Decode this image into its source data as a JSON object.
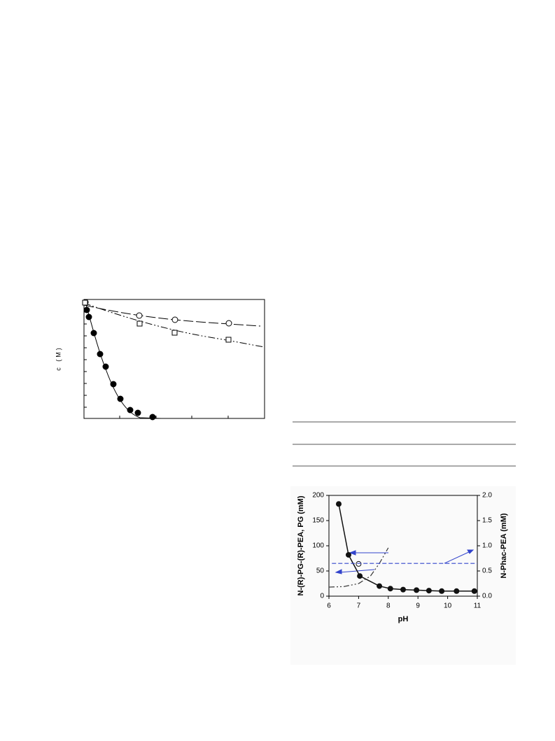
{
  "left_figure": {
    "y_label": "c (M)"
  },
  "chart_data": {
    "type": "line",
    "x_label": "pH",
    "y_label": "N-(R)-PG-(R)-PEA, PG (mM)",
    "y2_label": "N-Phac-PEA (mM)",
    "xlim": [
      6,
      11
    ],
    "xticks": [
      6,
      7,
      8,
      9,
      10,
      11
    ],
    "ylim": [
      0,
      200
    ],
    "yticks": [
      0,
      50,
      100,
      150,
      200
    ],
    "y2lim": [
      0,
      2
    ],
    "y2ticks": [
      {
        "value": 0,
        "label": "0.0"
      },
      {
        "value": 0.5,
        "label": "0.5"
      },
      {
        "value": 1,
        "label": "1.0"
      },
      {
        "value": 1.5,
        "label": "1.5"
      },
      {
        "value": 2,
        "label": "2.0"
      }
    ],
    "series": [
      {
        "color": "#111111",
        "line": "solid",
        "marker": "filled",
        "x": [
          6.33,
          6.66,
          7.04,
          7.7,
          8.07,
          8.5,
          8.95,
          9.37,
          9.8,
          10.3,
          10.9
        ],
        "values": [
          183,
          82,
          40,
          20,
          15,
          13,
          12,
          11,
          10,
          10,
          10
        ]
      },
      {
        "color": "#111111",
        "line": "none",
        "marker": "open",
        "x": [
          7.0
        ],
        "values": [
          64
        ]
      },
      {
        "color": "#333333",
        "line": "dashdot",
        "marker": "none",
        "x": [
          6.0,
          6.5,
          7.0,
          7.4,
          7.7,
          8.0
        ],
        "values": [
          18,
          19,
          25,
          40,
          65,
          96
        ]
      },
      {
        "color": "#3344cc",
        "line": "dashed",
        "marker": "none",
        "axis": "y2",
        "x": [
          6.1,
          11
        ],
        "values": [
          0.65,
          0.65
        ]
      }
    ]
  }
}
